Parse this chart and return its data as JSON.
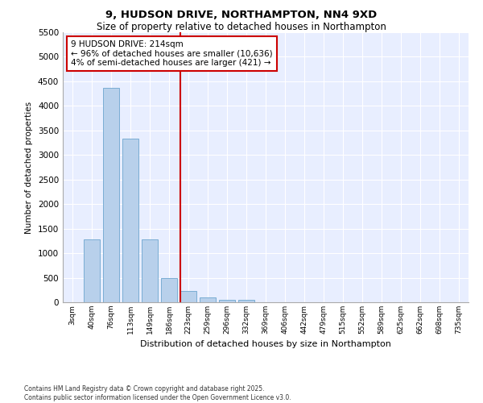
{
  "title_line1": "9, HUDSON DRIVE, NORTHAMPTON, NN4 9XD",
  "title_line2": "Size of property relative to detached houses in Northampton",
  "xlabel": "Distribution of detached houses by size in Northampton",
  "ylabel": "Number of detached properties",
  "categories": [
    "3sqm",
    "40sqm",
    "76sqm",
    "113sqm",
    "149sqm",
    "186sqm",
    "223sqm",
    "259sqm",
    "296sqm",
    "332sqm",
    "369sqm",
    "406sqm",
    "442sqm",
    "479sqm",
    "515sqm",
    "552sqm",
    "589sqm",
    "625sqm",
    "662sqm",
    "698sqm",
    "735sqm"
  ],
  "values": [
    0,
    1275,
    4375,
    3325,
    1275,
    500,
    225,
    100,
    55,
    50,
    0,
    0,
    0,
    0,
    0,
    0,
    0,
    0,
    0,
    0,
    0
  ],
  "bar_color": "#b8d0eb",
  "bar_edge_color": "#7aadd4",
  "highlight_color": "#cc0000",
  "highlight_bar_index": 6,
  "vline_color": "#cc0000",
  "annotation_text": "9 HUDSON DRIVE: 214sqm\n← 96% of detached houses are smaller (10,636)\n4% of semi-detached houses are larger (421) →",
  "annotation_box_edgecolor": "#cc0000",
  "ylim": [
    0,
    5500
  ],
  "yticks": [
    0,
    500,
    1000,
    1500,
    2000,
    2500,
    3000,
    3500,
    4000,
    4500,
    5000,
    5500
  ],
  "background_color": "#e8eeff",
  "grid_color": "#ffffff",
  "footer_line1": "Contains HM Land Registry data © Crown copyright and database right 2025.",
  "footer_line2": "Contains public sector information licensed under the Open Government Licence v3.0."
}
